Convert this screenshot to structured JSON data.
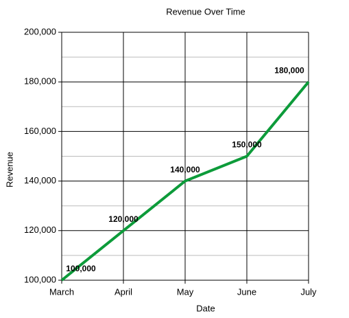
{
  "chart_data": {
    "type": "line",
    "title": "Revenue Over Time",
    "x_label": "Date",
    "y_label": "Revenue",
    "categories": [
      "March",
      "April",
      "May",
      "June",
      "July"
    ],
    "values": [
      100000,
      120000,
      140000,
      150000,
      180000
    ],
    "value_labels": [
      "100,000",
      "120,000",
      "140,000",
      "150,000",
      "180,000"
    ],
    "color": "#0d9b3a",
    "ylim": [
      100000,
      200000
    ],
    "yticks": [
      {
        "value": 100000,
        "label": "100,000"
      },
      {
        "value": 120000,
        "label": "120,000"
      },
      {
        "value": 140000,
        "label": "140,000"
      },
      {
        "value": 160000,
        "label": "160,000"
      },
      {
        "value": 180000,
        "label": "180,000"
      },
      {
        "value": 200000,
        "label": "200,000"
      }
    ],
    "grid": true,
    "minor_grid": true
  }
}
